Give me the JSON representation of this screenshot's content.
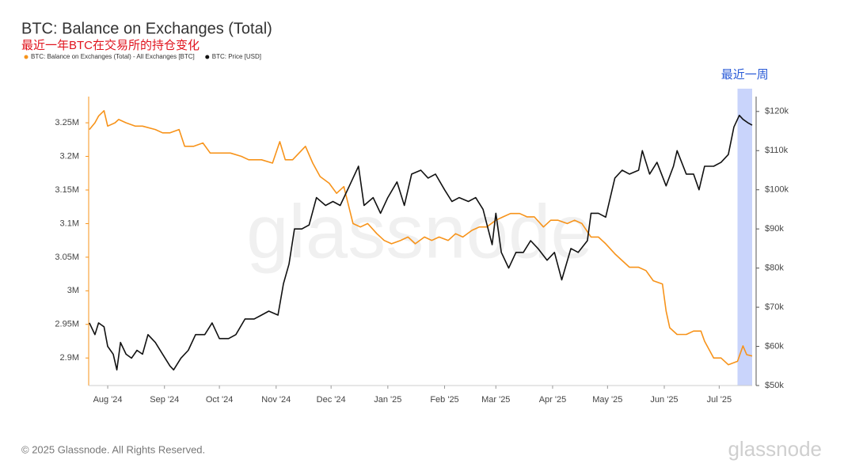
{
  "chart_data": {
    "type": "line",
    "title": "BTC: Balance on Exchanges (Total)",
    "subtitle": "最近一年BTC在交易所的持仓变化",
    "footer": "© 2025 Glassnode. All Rights Reserved.",
    "watermark": "glassnode",
    "highlight": {
      "label": "最近一周",
      "xrange": [
        344,
        352
      ],
      "color": "#c9d4fb"
    },
    "xlim": [
      -10.4,
      352
    ],
    "xticks": [
      {
        "value": 0,
        "label": "Aug '24"
      },
      {
        "value": 31,
        "label": "Sep '24"
      },
      {
        "value": 61,
        "label": "Oct '24"
      },
      {
        "value": 92,
        "label": "Nov '24"
      },
      {
        "value": 122,
        "label": "Dec '24"
      },
      {
        "value": 153,
        "label": "Jan '25"
      },
      {
        "value": 184,
        "label": "Feb '25"
      },
      {
        "value": 212,
        "label": "Mar '25"
      },
      {
        "value": 243,
        "label": "Apr '25"
      },
      {
        "value": 273,
        "label": "May '25"
      },
      {
        "value": 304,
        "label": "Jun '25"
      },
      {
        "value": 334,
        "label": "Jul '25"
      }
    ],
    "ylim": [
      2859000,
      3289000
    ],
    "yticks": [
      {
        "value": 2900000,
        "label": "2.9M"
      },
      {
        "value": 2950000,
        "label": "2.95M"
      },
      {
        "value": 3000000,
        "label": "3M"
      },
      {
        "value": 3050000,
        "label": "3.05M"
      },
      {
        "value": 3100000,
        "label": "3.1M"
      },
      {
        "value": 3150000,
        "label": "3.15M"
      },
      {
        "value": 3200000,
        "label": "3.2M"
      },
      {
        "value": 3250000,
        "label": "3.25M"
      }
    ],
    "y2lim": [
      50000,
      123800
    ],
    "y2ticks": [
      {
        "value": 50000,
        "label": "$50k"
      },
      {
        "value": 60000,
        "label": "$60k"
      },
      {
        "value": 70000,
        "label": "$70k"
      },
      {
        "value": 80000,
        "label": "$80k"
      },
      {
        "value": 90000,
        "label": "$90k"
      },
      {
        "value": 100000,
        "label": "$100k"
      },
      {
        "value": 110000,
        "label": "$110k"
      },
      {
        "value": 120000,
        "label": "$120k"
      }
    ],
    "series": [
      {
        "name": "BTC: Balance on Exchanges (Total) - All Exchanges [BTC]",
        "color": "#f7931a",
        "x": [
          -10,
          -7,
          -5,
          -2,
          0,
          4,
          6,
          10,
          15,
          19,
          26,
          30,
          34,
          39,
          42,
          47,
          52,
          56,
          60,
          67,
          73,
          77,
          84,
          90,
          94,
          97,
          101,
          108,
          112,
          116,
          121,
          125,
          129,
          134,
          138,
          142,
          147,
          151,
          155,
          160,
          164,
          168,
          173,
          177,
          181,
          186,
          190,
          194,
          199,
          203,
          207,
          212,
          216,
          220,
          225,
          229,
          233,
          238,
          242,
          246,
          251,
          255,
          259,
          264,
          268,
          272,
          277,
          281,
          285,
          290,
          294,
          298,
          303,
          305,
          307,
          311,
          316,
          320,
          324,
          326,
          331,
          335,
          339,
          344,
          347,
          349,
          352
        ],
        "values": [
          3240000,
          3250000,
          3260000,
          3268000,
          3245000,
          3250000,
          3255000,
          3250000,
          3245000,
          3245000,
          3240000,
          3235000,
          3235000,
          3240000,
          3215000,
          3215000,
          3220000,
          3205000,
          3205000,
          3205000,
          3200000,
          3195000,
          3195000,
          3190000,
          3222000,
          3195000,
          3195000,
          3215000,
          3190000,
          3170000,
          3160000,
          3145000,
          3155000,
          3100000,
          3095000,
          3100000,
          3085000,
          3075000,
          3070000,
          3075000,
          3080000,
          3070000,
          3080000,
          3075000,
          3080000,
          3075000,
          3085000,
          3080000,
          3090000,
          3095000,
          3095000,
          3105000,
          3110000,
          3115000,
          3115000,
          3110000,
          3110000,
          3095000,
          3105000,
          3105000,
          3100000,
          3105000,
          3100000,
          3080000,
          3080000,
          3070000,
          3055000,
          3045000,
          3035000,
          3035000,
          3030000,
          3015000,
          3010000,
          2970000,
          2945000,
          2935000,
          2935000,
          2940000,
          2940000,
          2925000,
          2900000,
          2900000,
          2890000,
          2895000,
          2918000,
          2905000,
          2903000
        ]
      },
      {
        "name": "BTC: Price [USD]",
        "color": "#111111",
        "axis": "y2",
        "x": [
          -10,
          -7,
          -5,
          -2,
          0,
          3,
          5,
          7,
          10,
          13,
          16,
          19,
          22,
          26,
          30,
          34,
          36,
          40,
          44,
          48,
          53,
          57,
          61,
          66,
          70,
          75,
          80,
          84,
          88,
          93,
          96,
          99,
          102,
          106,
          110,
          114,
          119,
          123,
          127,
          132,
          137,
          140,
          145,
          149,
          153,
          158,
          162,
          166,
          171,
          175,
          179,
          184,
          188,
          192,
          197,
          201,
          205,
          210,
          212,
          215,
          219,
          223,
          227,
          231,
          235,
          240,
          244,
          248,
          253,
          257,
          262,
          264,
          268,
          272,
          277,
          281,
          285,
          290,
          292,
          296,
          300,
          305,
          309,
          311,
          316,
          320,
          323,
          326,
          331,
          335,
          339,
          342,
          345,
          347,
          350,
          352
        ],
        "values": [
          66000,
          63000,
          66000,
          65000,
          60000,
          58000,
          54000,
          61000,
          58000,
          57000,
          59000,
          58000,
          63000,
          61000,
          58000,
          55000,
          54000,
          57000,
          59000,
          63000,
          63000,
          66000,
          62000,
          62000,
          63000,
          67000,
          67000,
          68000,
          69000,
          68000,
          76000,
          81000,
          90000,
          90000,
          91000,
          98000,
          96000,
          97000,
          96000,
          101000,
          106000,
          96000,
          98000,
          94000,
          98000,
          102000,
          96000,
          104000,
          105000,
          103000,
          104000,
          100000,
          97000,
          98000,
          97000,
          98000,
          95000,
          86000,
          94000,
          84000,
          80000,
          84000,
          84000,
          87000,
          85000,
          82000,
          84000,
          77000,
          85000,
          84000,
          87000,
          94000,
          94000,
          93000,
          103000,
          105000,
          104000,
          105000,
          110000,
          104000,
          107000,
          101000,
          106000,
          110000,
          104000,
          104000,
          100000,
          106000,
          106000,
          107000,
          109000,
          116000,
          119000,
          118000,
          117000,
          116500
        ]
      }
    ]
  }
}
